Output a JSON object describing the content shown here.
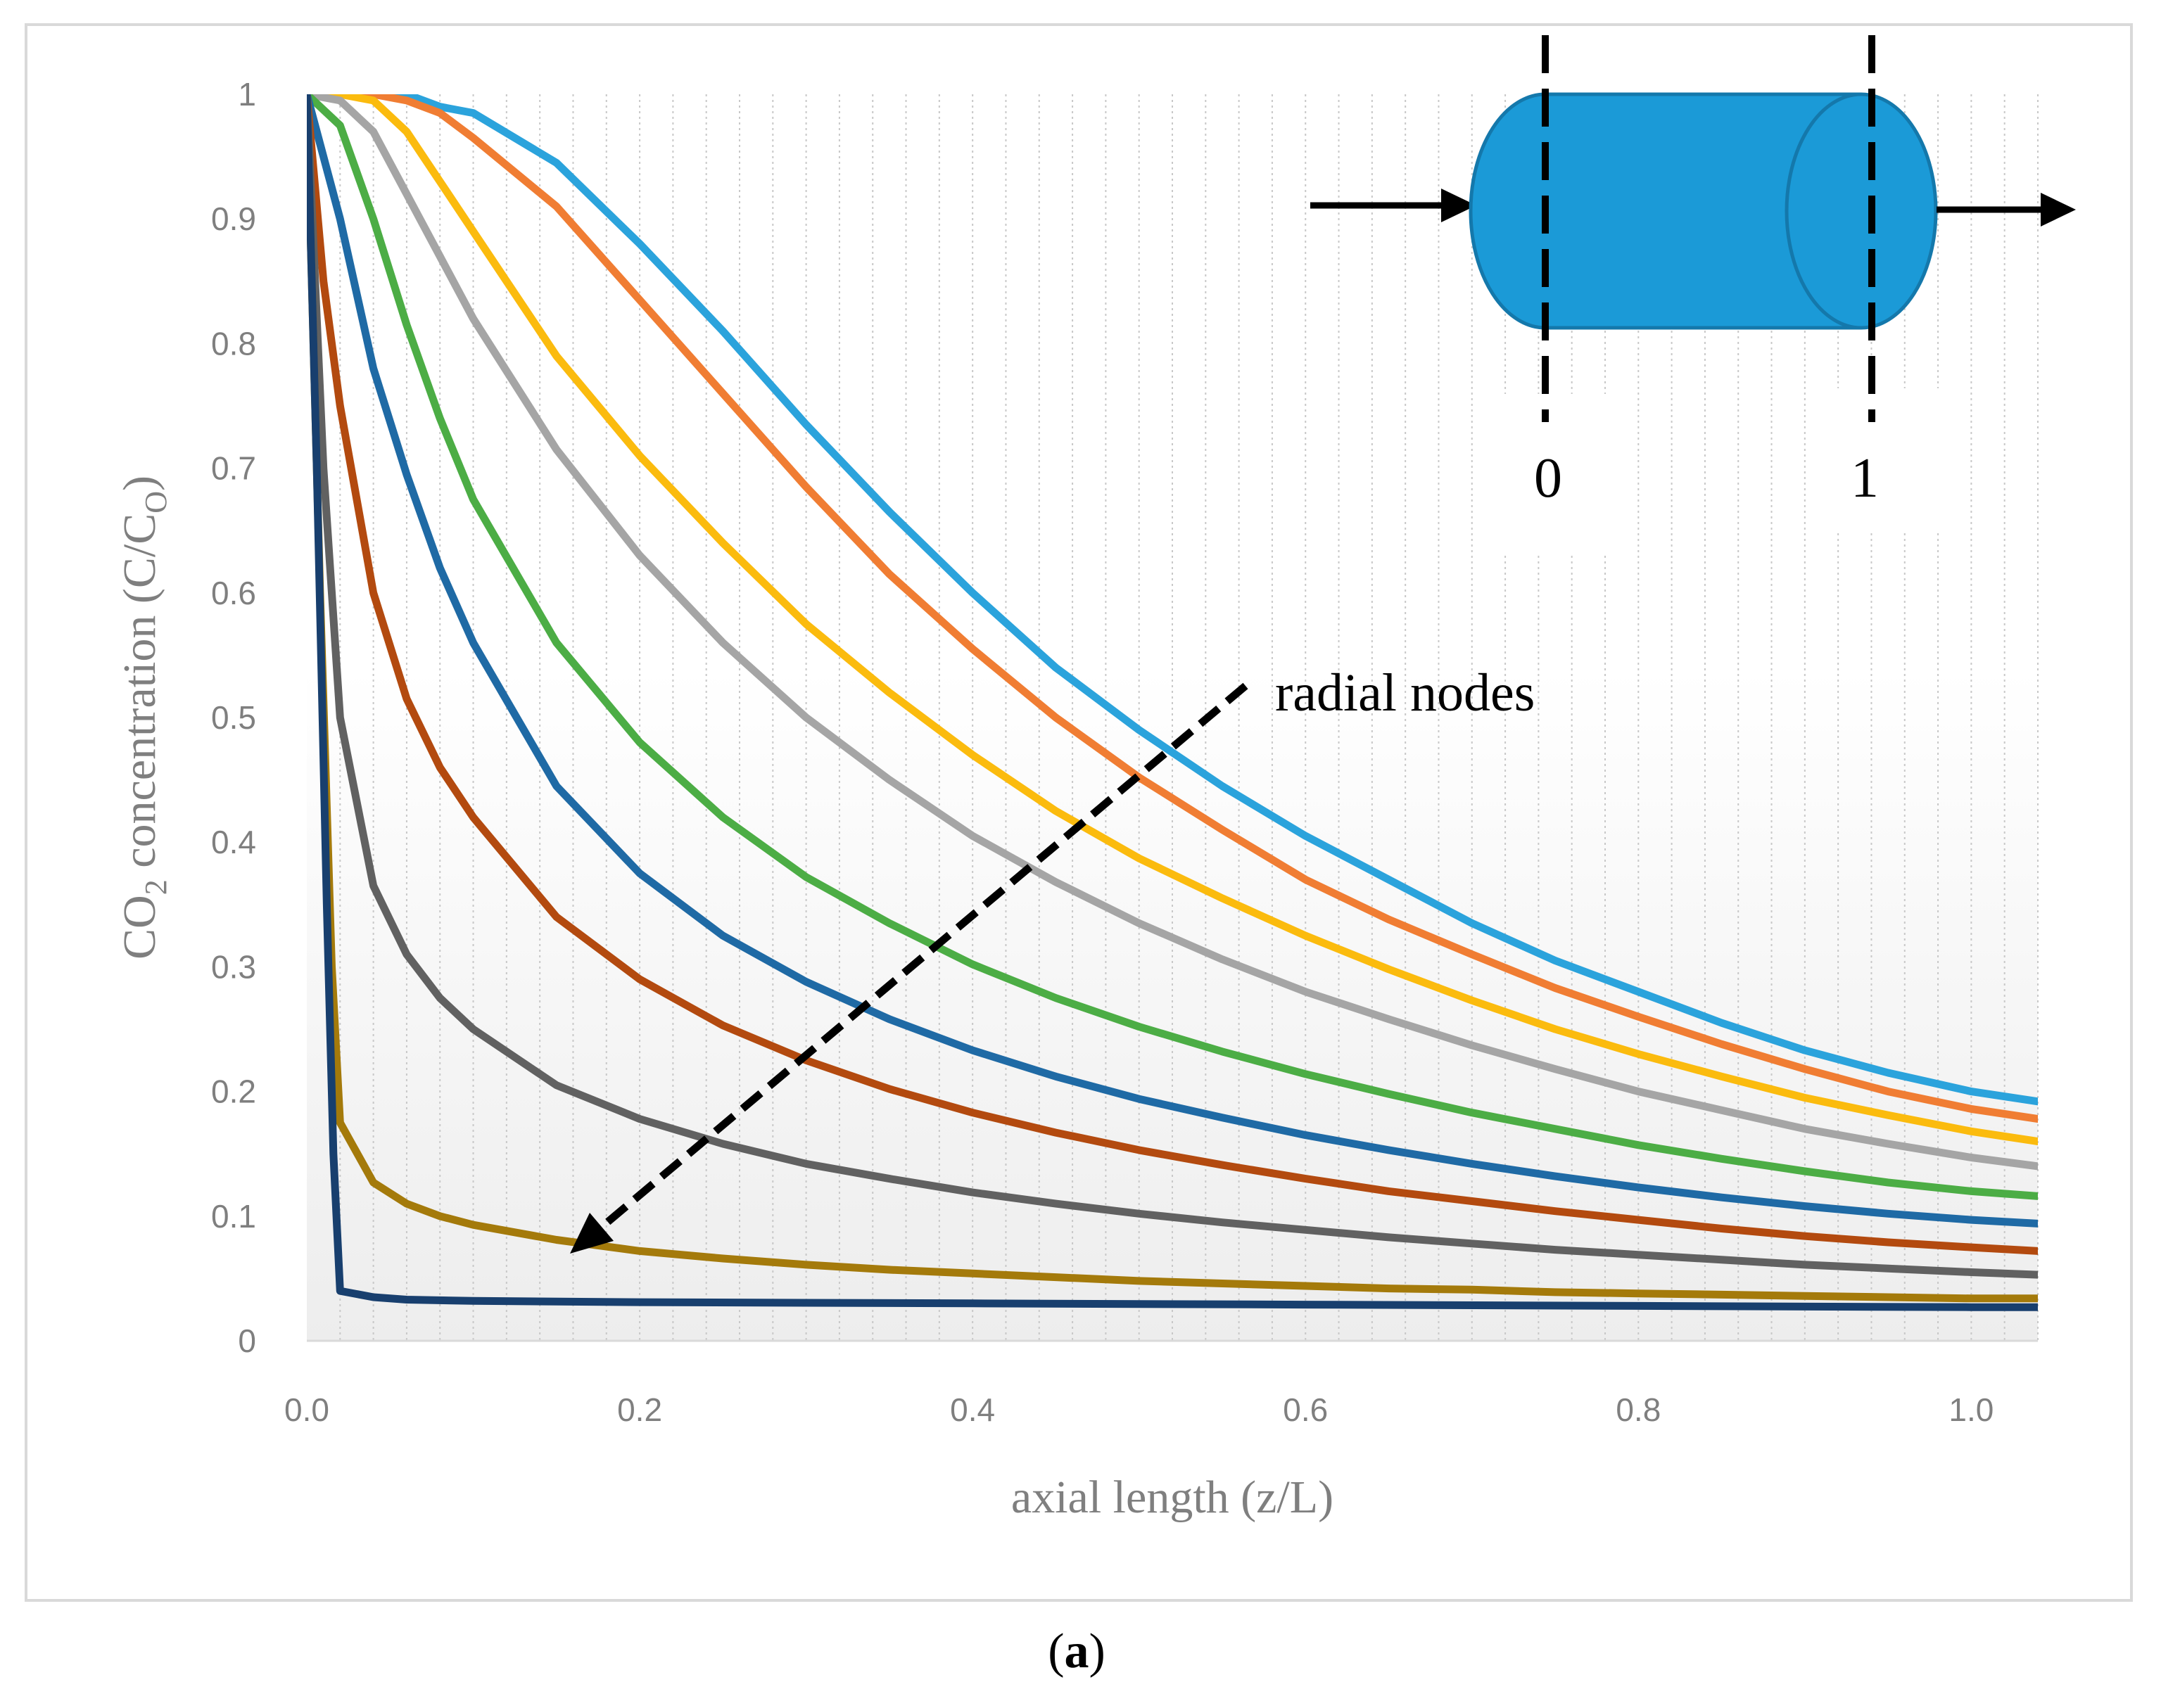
{
  "caption": {
    "paren_open": "(",
    "letter": "a",
    "paren_close": ")"
  },
  "annotation": {
    "label": "radial nodes"
  },
  "inset": {
    "fill": "#1b9ad7",
    "stroke": "#1478ab",
    "label_start": "0",
    "label_end": "1"
  },
  "chart_data": {
    "type": "line",
    "xlabel": "axial length (z/L)",
    "ylabel_parts": {
      "a": "CO",
      "b": "2",
      "c": " concentration (C/C",
      "d": "O",
      "e": ")"
    },
    "xlim": [
      0,
      1.04
    ],
    "ylim": [
      0,
      1
    ],
    "x_ticks": [
      "0.0",
      "0.2",
      "0.4",
      "0.6",
      "0.8",
      "1.0"
    ],
    "y_ticks": [
      "0",
      "0.1",
      "0.2",
      "0.3",
      "0.4",
      "0.5",
      "0.6",
      "0.7",
      "0.8",
      "0.9",
      "1"
    ],
    "grid": "vertical dashed lines at every 0.02 in z/L",
    "legend": "none",
    "series": [
      {
        "color": "#2ba3dc",
        "points": [
          [
            0,
            1
          ],
          [
            0.04,
            1
          ],
          [
            0.06,
            1
          ],
          [
            0.08,
            0.99
          ],
          [
            0.1,
            0.985
          ],
          [
            0.15,
            0.945
          ],
          [
            0.2,
            0.88
          ],
          [
            0.25,
            0.81
          ],
          [
            0.3,
            0.735
          ],
          [
            0.35,
            0.665
          ],
          [
            0.4,
            0.6
          ],
          [
            0.45,
            0.54
          ],
          [
            0.5,
            0.49
          ],
          [
            0.55,
            0.445
          ],
          [
            0.6,
            0.405
          ],
          [
            0.65,
            0.37
          ],
          [
            0.7,
            0.335
          ],
          [
            0.75,
            0.305
          ],
          [
            0.8,
            0.28
          ],
          [
            0.85,
            0.255
          ],
          [
            0.9,
            0.233
          ],
          [
            0.95,
            0.215
          ],
          [
            1.0,
            0.2
          ],
          [
            1.04,
            0.192
          ]
        ]
      },
      {
        "color": "#f07d33",
        "points": [
          [
            0,
            1
          ],
          [
            0.04,
            1
          ],
          [
            0.06,
            0.995
          ],
          [
            0.08,
            0.985
          ],
          [
            0.1,
            0.965
          ],
          [
            0.15,
            0.91
          ],
          [
            0.2,
            0.835
          ],
          [
            0.25,
            0.76
          ],
          [
            0.3,
            0.685
          ],
          [
            0.35,
            0.615
          ],
          [
            0.4,
            0.555
          ],
          [
            0.45,
            0.5
          ],
          [
            0.5,
            0.452
          ],
          [
            0.55,
            0.41
          ],
          [
            0.6,
            0.37
          ],
          [
            0.65,
            0.338
          ],
          [
            0.7,
            0.31
          ],
          [
            0.75,
            0.283
          ],
          [
            0.8,
            0.26
          ],
          [
            0.85,
            0.238
          ],
          [
            0.9,
            0.218
          ],
          [
            0.95,
            0.2
          ],
          [
            1.0,
            0.186
          ],
          [
            1.04,
            0.178
          ]
        ]
      },
      {
        "color": "#fbbb0e",
        "points": [
          [
            0,
            1
          ],
          [
            0.02,
            1
          ],
          [
            0.04,
            0.995
          ],
          [
            0.06,
            0.97
          ],
          [
            0.08,
            0.93
          ],
          [
            0.1,
            0.89
          ],
          [
            0.15,
            0.79
          ],
          [
            0.2,
            0.71
          ],
          [
            0.25,
            0.64
          ],
          [
            0.3,
            0.575
          ],
          [
            0.35,
            0.52
          ],
          [
            0.4,
            0.47
          ],
          [
            0.45,
            0.425
          ],
          [
            0.5,
            0.387
          ],
          [
            0.55,
            0.355
          ],
          [
            0.6,
            0.325
          ],
          [
            0.65,
            0.298
          ],
          [
            0.7,
            0.273
          ],
          [
            0.75,
            0.25
          ],
          [
            0.8,
            0.23
          ],
          [
            0.85,
            0.212
          ],
          [
            0.9,
            0.195
          ],
          [
            0.95,
            0.181
          ],
          [
            1.0,
            0.168
          ],
          [
            1.04,
            0.16
          ]
        ]
      },
      {
        "color": "#a5a5a5",
        "points": [
          [
            0,
            1
          ],
          [
            0.02,
            0.995
          ],
          [
            0.04,
            0.97
          ],
          [
            0.06,
            0.92
          ],
          [
            0.08,
            0.87
          ],
          [
            0.1,
            0.82
          ],
          [
            0.15,
            0.715
          ],
          [
            0.2,
            0.63
          ],
          [
            0.25,
            0.56
          ],
          [
            0.3,
            0.5
          ],
          [
            0.35,
            0.45
          ],
          [
            0.4,
            0.405
          ],
          [
            0.45,
            0.368
          ],
          [
            0.5,
            0.335
          ],
          [
            0.55,
            0.306
          ],
          [
            0.6,
            0.28
          ],
          [
            0.65,
            0.258
          ],
          [
            0.7,
            0.237
          ],
          [
            0.75,
            0.218
          ],
          [
            0.8,
            0.2
          ],
          [
            0.85,
            0.185
          ],
          [
            0.9,
            0.17
          ],
          [
            0.95,
            0.158
          ],
          [
            1.0,
            0.147
          ],
          [
            1.04,
            0.14
          ]
        ]
      },
      {
        "color": "#4cad45",
        "points": [
          [
            0,
            1
          ],
          [
            0.02,
            0.975
          ],
          [
            0.04,
            0.9
          ],
          [
            0.06,
            0.815
          ],
          [
            0.08,
            0.74
          ],
          [
            0.1,
            0.675
          ],
          [
            0.15,
            0.56
          ],
          [
            0.2,
            0.48
          ],
          [
            0.25,
            0.42
          ],
          [
            0.3,
            0.372
          ],
          [
            0.35,
            0.335
          ],
          [
            0.4,
            0.302
          ],
          [
            0.45,
            0.275
          ],
          [
            0.5,
            0.252
          ],
          [
            0.55,
            0.232
          ],
          [
            0.6,
            0.214
          ],
          [
            0.65,
            0.198
          ],
          [
            0.7,
            0.183
          ],
          [
            0.75,
            0.17
          ],
          [
            0.8,
            0.157
          ],
          [
            0.85,
            0.146
          ],
          [
            0.9,
            0.136
          ],
          [
            0.95,
            0.127
          ],
          [
            1.0,
            0.12
          ],
          [
            1.04,
            0.116
          ]
        ]
      },
      {
        "color": "#1f6aa5",
        "points": [
          [
            0,
            1
          ],
          [
            0.02,
            0.9
          ],
          [
            0.04,
            0.78
          ],
          [
            0.06,
            0.695
          ],
          [
            0.08,
            0.62
          ],
          [
            0.1,
            0.56
          ],
          [
            0.15,
            0.445
          ],
          [
            0.2,
            0.375
          ],
          [
            0.25,
            0.325
          ],
          [
            0.3,
            0.288
          ],
          [
            0.35,
            0.258
          ],
          [
            0.4,
            0.233
          ],
          [
            0.45,
            0.212
          ],
          [
            0.5,
            0.194
          ],
          [
            0.55,
            0.179
          ],
          [
            0.6,
            0.165
          ],
          [
            0.65,
            0.153
          ],
          [
            0.7,
            0.142
          ],
          [
            0.75,
            0.132
          ],
          [
            0.8,
            0.123
          ],
          [
            0.85,
            0.115
          ],
          [
            0.9,
            0.108
          ],
          [
            0.95,
            0.102
          ],
          [
            1.0,
            0.097
          ],
          [
            1.04,
            0.094
          ]
        ]
      },
      {
        "color": "#b34a0f",
        "points": [
          [
            0,
            1
          ],
          [
            0.01,
            0.85
          ],
          [
            0.02,
            0.75
          ],
          [
            0.04,
            0.6
          ],
          [
            0.06,
            0.515
          ],
          [
            0.08,
            0.46
          ],
          [
            0.1,
            0.42
          ],
          [
            0.15,
            0.34
          ],
          [
            0.2,
            0.29
          ],
          [
            0.25,
            0.253
          ],
          [
            0.3,
            0.225
          ],
          [
            0.35,
            0.202
          ],
          [
            0.4,
            0.183
          ],
          [
            0.45,
            0.167
          ],
          [
            0.5,
            0.153
          ],
          [
            0.55,
            0.141
          ],
          [
            0.6,
            0.13
          ],
          [
            0.65,
            0.12
          ],
          [
            0.7,
            0.112
          ],
          [
            0.75,
            0.104
          ],
          [
            0.8,
            0.097
          ],
          [
            0.85,
            0.09
          ],
          [
            0.9,
            0.084
          ],
          [
            0.95,
            0.079
          ],
          [
            1.0,
            0.075
          ],
          [
            1.04,
            0.072
          ]
        ]
      },
      {
        "color": "#616161",
        "points": [
          [
            0,
            1
          ],
          [
            0.01,
            0.7
          ],
          [
            0.02,
            0.5
          ],
          [
            0.04,
            0.365
          ],
          [
            0.06,
            0.31
          ],
          [
            0.08,
            0.275
          ],
          [
            0.1,
            0.25
          ],
          [
            0.15,
            0.205
          ],
          [
            0.2,
            0.178
          ],
          [
            0.25,
            0.158
          ],
          [
            0.3,
            0.142
          ],
          [
            0.35,
            0.13
          ],
          [
            0.4,
            0.119
          ],
          [
            0.45,
            0.11
          ],
          [
            0.5,
            0.102
          ],
          [
            0.55,
            0.095
          ],
          [
            0.6,
            0.089
          ],
          [
            0.65,
            0.083
          ],
          [
            0.7,
            0.078
          ],
          [
            0.75,
            0.073
          ],
          [
            0.8,
            0.069
          ],
          [
            0.85,
            0.065
          ],
          [
            0.9,
            0.061
          ],
          [
            0.95,
            0.058
          ],
          [
            1.0,
            0.055
          ],
          [
            1.04,
            0.053
          ]
        ]
      },
      {
        "color": "#a47a0b",
        "points": [
          [
            0,
            1
          ],
          [
            0.008,
            0.6
          ],
          [
            0.015,
            0.3
          ],
          [
            0.02,
            0.175
          ],
          [
            0.04,
            0.127
          ],
          [
            0.06,
            0.11
          ],
          [
            0.08,
            0.1
          ],
          [
            0.1,
            0.093
          ],
          [
            0.15,
            0.081
          ],
          [
            0.2,
            0.072
          ],
          [
            0.25,
            0.066
          ],
          [
            0.3,
            0.061
          ],
          [
            0.35,
            0.057
          ],
          [
            0.4,
            0.054
          ],
          [
            0.45,
            0.051
          ],
          [
            0.5,
            0.048
          ],
          [
            0.55,
            0.046
          ],
          [
            0.6,
            0.044
          ],
          [
            0.65,
            0.042
          ],
          [
            0.7,
            0.041
          ],
          [
            0.75,
            0.039
          ],
          [
            0.8,
            0.038
          ],
          [
            0.85,
            0.037
          ],
          [
            0.9,
            0.036
          ],
          [
            0.95,
            0.035
          ],
          [
            1.0,
            0.034
          ],
          [
            1.04,
            0.034
          ]
        ]
      },
      {
        "color": "#183f6e",
        "points": [
          [
            0,
            1
          ],
          [
            0.006,
            0.7
          ],
          [
            0.012,
            0.35
          ],
          [
            0.016,
            0.15
          ],
          [
            0.02,
            0.04
          ],
          [
            0.04,
            0.035
          ],
          [
            0.06,
            0.033
          ],
          [
            0.1,
            0.032
          ],
          [
            0.2,
            0.031
          ],
          [
            0.4,
            0.03
          ],
          [
            0.6,
            0.029
          ],
          [
            0.8,
            0.028
          ],
          [
            1.0,
            0.027
          ],
          [
            1.04,
            0.027
          ]
        ]
      }
    ]
  }
}
